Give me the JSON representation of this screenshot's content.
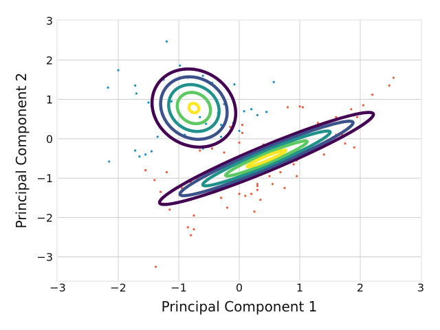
{
  "chart_data": {
    "type": "scatter",
    "title": "",
    "xlabel": "Principal Component 1",
    "ylabel": "Principal Component 2",
    "xlim": [
      -3,
      3
    ],
    "ylim": [
      -3.6,
      3
    ],
    "xticks": [
      -3,
      -2,
      -1,
      0,
      1,
      2,
      3
    ],
    "yticks": [
      -3,
      -2,
      -1,
      0,
      1,
      2,
      3
    ],
    "grid": true,
    "colors": {
      "background": "#ffffff",
      "plot_border": "#eeeeee",
      "grid": "#cccccc",
      "blue_points": "#1a8fc1",
      "red_points": "#f05a3c",
      "contour_levels": [
        "#440154",
        "#3b528b",
        "#21918c",
        "#5ec962",
        "#fde725"
      ]
    },
    "series": [
      {
        "color": "#1a8fc1",
        "points": [
          [
            -1.2,
            2.47
          ],
          [
            -2.0,
            1.74
          ],
          [
            -0.98,
            1.86
          ],
          [
            -2.17,
            1.3
          ],
          [
            -1.72,
            1.35
          ],
          [
            -1.7,
            1.15
          ],
          [
            -1.5,
            0.92
          ],
          [
            -0.9,
            1.75
          ],
          [
            -0.75,
            1.78
          ],
          [
            -1.05,
            1.72
          ],
          [
            -0.85,
            1.55
          ],
          [
            -0.6,
            1.6
          ],
          [
            -0.45,
            1.42
          ],
          [
            -0.08,
            1.38
          ],
          [
            0.57,
            1.44
          ],
          [
            -1.25,
            1.5
          ],
          [
            -1.35,
            1.38
          ],
          [
            -1.45,
            0.82
          ],
          [
            -1.3,
            0.75
          ],
          [
            -1.12,
            0.95
          ],
          [
            -0.65,
            0.55
          ],
          [
            -0.35,
            0.65
          ],
          [
            -0.25,
            0.88
          ],
          [
            0.08,
            0.7
          ],
          [
            0.2,
            0.75
          ],
          [
            0.3,
            0.6
          ],
          [
            0.45,
            0.68
          ],
          [
            -0.55,
            0.38
          ],
          [
            -0.3,
            0.35
          ],
          [
            -0.1,
            0.4
          ],
          [
            -1.72,
            -0.3
          ],
          [
            -1.55,
            -0.4
          ],
          [
            -1.45,
            -0.32
          ],
          [
            -1.65,
            -0.45
          ],
          [
            -1.35,
            0.05
          ],
          [
            -2.15,
            -0.58
          ],
          [
            -0.3,
            0.05
          ],
          [
            -0.9,
            0.1
          ],
          [
            -0.6,
            -0.25
          ],
          [
            0.0,
            0.2
          ]
        ]
      },
      {
        "color": "#f05a3c",
        "points": [
          [
            2.55,
            1.55
          ],
          [
            2.48,
            1.35
          ],
          [
            2.2,
            1.12
          ],
          [
            2.05,
            0.85
          ],
          [
            1.95,
            0.55
          ],
          [
            1.85,
            0.75
          ],
          [
            1.6,
            0.55
          ],
          [
            1.05,
            0.8
          ],
          [
            0.8,
            0.8
          ],
          [
            1.0,
            0.82
          ],
          [
            1.3,
            0.4
          ],
          [
            0.95,
            0.1
          ],
          [
            1.6,
            -0.05
          ],
          [
            1.75,
            -0.12
          ],
          [
            1.9,
            -0.22
          ],
          [
            1.7,
            0.1
          ],
          [
            1.45,
            0.2
          ],
          [
            1.2,
            -0.25
          ],
          [
            1.4,
            -0.4
          ],
          [
            0.95,
            -0.3
          ],
          [
            0.95,
            -0.55
          ],
          [
            0.75,
            -0.45
          ],
          [
            0.9,
            -0.65
          ],
          [
            0.95,
            -0.95
          ],
          [
            0.6,
            -0.7
          ],
          [
            0.68,
            -0.85
          ],
          [
            0.5,
            -0.95
          ],
          [
            0.55,
            -1.15
          ],
          [
            0.75,
            -1.25
          ],
          [
            0.3,
            -1.15
          ],
          [
            0.2,
            -1.4
          ],
          [
            0.3,
            -1.3
          ],
          [
            0.35,
            -1.55
          ],
          [
            0.25,
            -1.85
          ],
          [
            0.1,
            -1.45
          ],
          [
            0.0,
            -1.4
          ],
          [
            -0.15,
            -1.2
          ],
          [
            -0.2,
            -1.75
          ],
          [
            -0.3,
            -1.5
          ],
          [
            -0.5,
            -1.2
          ],
          [
            -0.7,
            -1.0
          ],
          [
            -0.8,
            -1.1
          ],
          [
            -0.95,
            -1.25
          ],
          [
            -1.2,
            -0.85
          ],
          [
            -1.3,
            -1.35
          ],
          [
            -1.4,
            -1.05
          ],
          [
            -1.55,
            -0.8
          ],
          [
            -1.25,
            -1.65
          ],
          [
            -1.15,
            -1.8
          ],
          [
            -0.85,
            -2.25
          ],
          [
            -0.8,
            -2.45
          ],
          [
            -0.75,
            -2.3
          ],
          [
            -0.8,
            -1.55
          ],
          [
            -0.75,
            -1.95
          ],
          [
            -1.38,
            -3.25
          ],
          [
            0.2,
            -0.4
          ],
          [
            0.4,
            -0.15
          ],
          [
            0.5,
            -0.3
          ],
          [
            0.1,
            -0.6
          ],
          [
            0.0,
            -0.1
          ],
          [
            -0.25,
            -0.35
          ],
          [
            -0.45,
            -0.25
          ],
          [
            0.05,
            0.15
          ],
          [
            -0.15,
            0.3
          ],
          [
            0.05,
            0.35
          ],
          [
            -0.65,
            -0.3
          ],
          [
            1.6,
            0.1
          ],
          [
            0.3,
            -1.2
          ]
        ]
      }
    ],
    "contours": [
      {
        "center": [
          -0.75,
          0.78
        ],
        "angle_deg": -80,
        "semi_axes": [
          [
            1.0,
            0.68
          ],
          [
            0.8,
            0.54
          ],
          [
            0.6,
            0.41
          ],
          [
            0.4,
            0.27
          ],
          [
            0.12,
            0.08
          ]
        ]
      },
      {
        "center": [
          0.45,
          -0.5
        ],
        "angle_deg": 33,
        "semi_axes": [
          [
            2.1,
            0.29
          ],
          [
            1.7,
            0.23
          ],
          [
            1.25,
            0.17
          ],
          [
            0.8,
            0.11
          ],
          [
            0.38,
            0.052
          ]
        ]
      }
    ]
  }
}
